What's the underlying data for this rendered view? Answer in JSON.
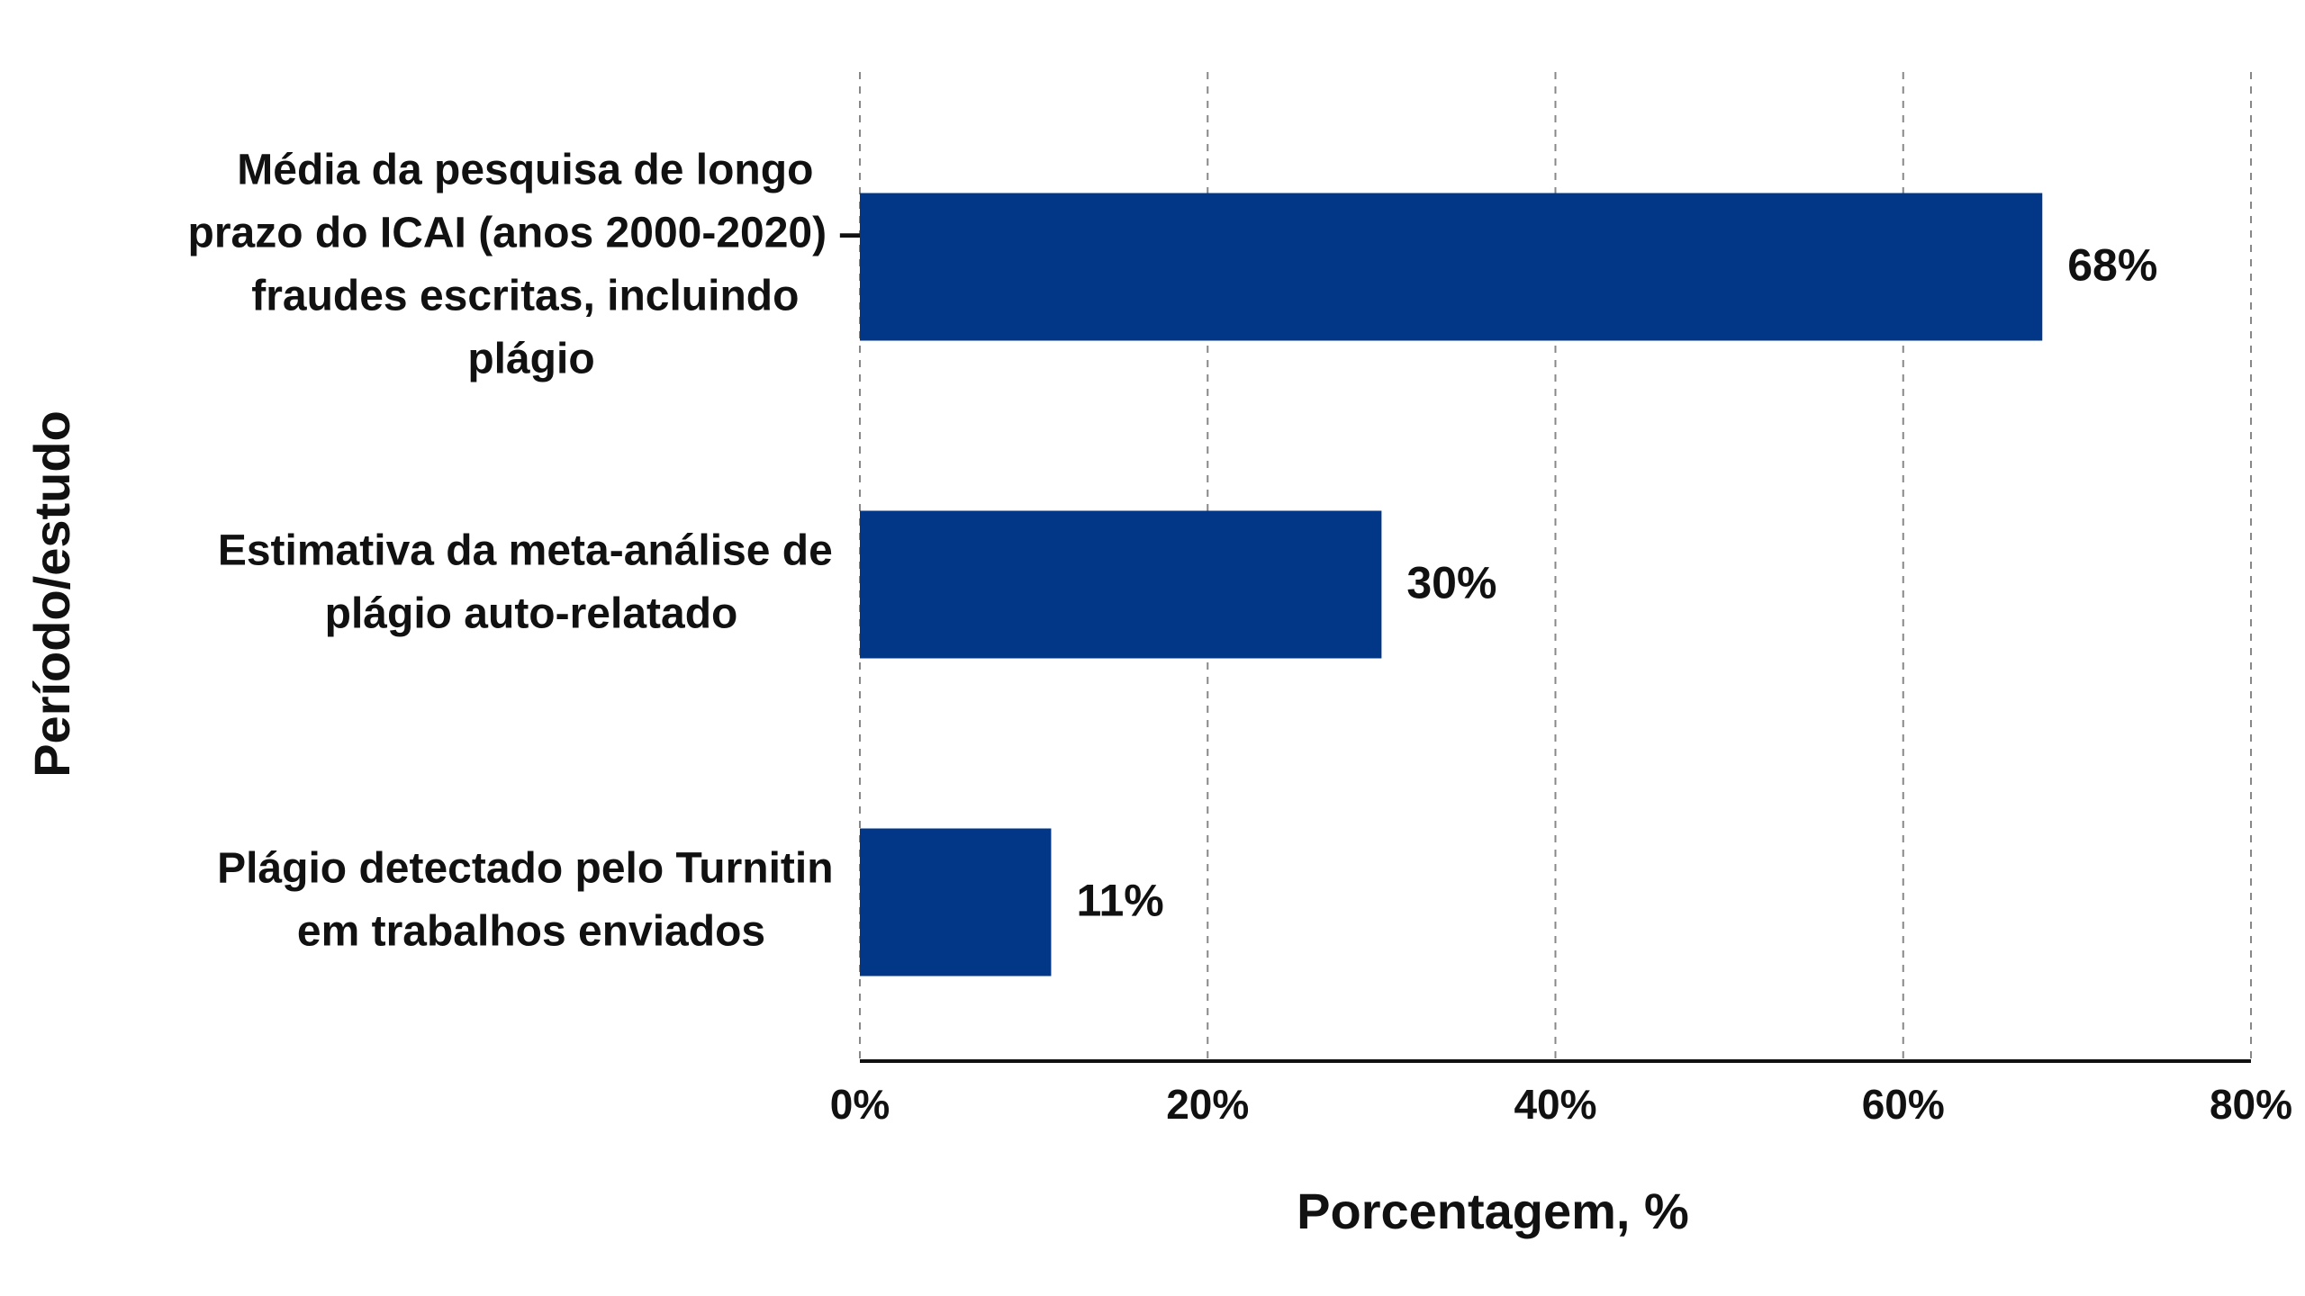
{
  "chart_data": {
    "type": "bar",
    "orientation": "horizontal",
    "xlabel": "Porcentagem, %",
    "ylabel": "Período/estudo",
    "categories": [
      "Média da pesquisa de longo prazo do ICAI (anos 2000-2020) – fraudes escritas, incluindo plágio",
      "Estimativa da meta-análise de plágio auto-relatado",
      "Plágio detectado pelo Turnitin em trabalhos enviados"
    ],
    "values": [
      68,
      30,
      11
    ],
    "value_labels": [
      "68%",
      "30%",
      "11%"
    ],
    "color": "#023788",
    "xlim": [
      0,
      80
    ],
    "xticks": [
      {
        "value": 0,
        "label": "0%"
      },
      {
        "value": 20,
        "label": "20%"
      },
      {
        "value": 40,
        "label": "40%"
      },
      {
        "value": 60,
        "label": "60%"
      },
      {
        "value": 80,
        "label": "80%"
      }
    ],
    "grid": true
  }
}
